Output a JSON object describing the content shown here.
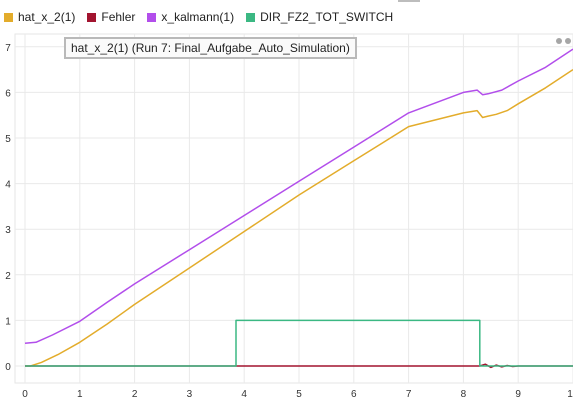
{
  "legend": [
    {
      "label": "hat_x_2(1)",
      "color": "#e3ac2b"
    },
    {
      "label": "Fehler",
      "color": "#a2142f"
    },
    {
      "label": "x_kalmann(1)",
      "color": "#b24eeb"
    },
    {
      "label": "DIR_FZ2_TOT_SWITCH",
      "color": "#3bb883"
    }
  ],
  "plot_title": "hat_x_2(1) (Run 7: Final_Aufgabe_Auto_Simulation)",
  "chart_data": {
    "type": "line",
    "title": "hat_x_2(1) (Run 7: Final_Aufgabe_Auto_Simulation)",
    "xlabel": "",
    "ylabel": "",
    "xlim": [
      0,
      10
    ],
    "ylim": [
      -0.3,
      7.3
    ],
    "x_ticks": [
      "0",
      "1",
      "2",
      "3",
      "4",
      "5",
      "6",
      "7",
      "8",
      "9",
      "1"
    ],
    "y_ticks": [
      "0",
      "1",
      "2",
      "3",
      "4",
      "5",
      "6",
      "7"
    ],
    "grid": true,
    "legend_position": "top",
    "series": [
      {
        "name": "hat_x_2(1)",
        "color": "#e3ac2b",
        "x": [
          0,
          0.1,
          0.3,
          0.6,
          1.0,
          1.5,
          2.0,
          3.0,
          4.0,
          5.0,
          6.0,
          7.0,
          8.0,
          8.25,
          8.35,
          8.45,
          8.6,
          8.8,
          9.0,
          9.5,
          10.0
        ],
        "y": [
          0,
          0.0,
          0.08,
          0.25,
          0.52,
          0.92,
          1.35,
          2.15,
          2.95,
          3.75,
          4.5,
          5.25,
          5.55,
          5.6,
          5.45,
          5.48,
          5.52,
          5.6,
          5.75,
          6.1,
          6.5
        ]
      },
      {
        "name": "Fehler",
        "color": "#a2142f",
        "x": [
          0,
          8.3,
          8.4,
          8.5,
          8.6,
          8.7,
          8.8,
          8.9,
          9.0,
          10.0
        ],
        "y": [
          0,
          0,
          0.04,
          -0.03,
          0.02,
          -0.02,
          0.01,
          -0.01,
          0,
          0
        ]
      },
      {
        "name": "x_kalmann(1)",
        "color": "#b24eeb",
        "x": [
          0,
          0.2,
          0.5,
          1.0,
          1.5,
          2.0,
          3.0,
          4.0,
          5.0,
          6.0,
          7.0,
          8.0,
          8.25,
          8.35,
          8.45,
          8.7,
          9.0,
          9.5,
          10.0
        ],
        "y": [
          0.5,
          0.52,
          0.68,
          0.98,
          1.4,
          1.8,
          2.55,
          3.3,
          4.05,
          4.8,
          5.55,
          6.0,
          6.05,
          5.95,
          5.97,
          6.05,
          6.25,
          6.55,
          6.95
        ]
      },
      {
        "name": "DIR_FZ2_TOT_SWITCH",
        "color": "#3bb883",
        "x": [
          0,
          3.85,
          3.85,
          8.3,
          8.3,
          10.0
        ],
        "y": [
          0,
          0,
          1,
          1,
          0,
          0
        ]
      }
    ]
  }
}
